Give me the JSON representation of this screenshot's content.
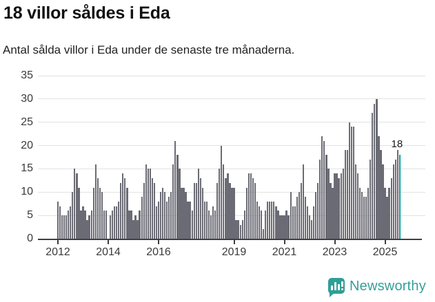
{
  "header": {
    "title": "18 villor såldes i Eda",
    "subtitle": "Antal sålda villor i Eda under de senaste tre månaderna."
  },
  "chart_data": {
    "type": "bar",
    "title": "18 villor såldes i Eda",
    "subtitle": "Antal sålda villor i Eda under de senaste tre månaderna.",
    "xlabel": "",
    "ylabel": "",
    "x_start": "2012-01",
    "x_end": "2025-08",
    "x_unit": "month",
    "ylim": [
      0,
      35
    ],
    "yticks": [
      0,
      5,
      10,
      15,
      20,
      25,
      30,
      35
    ],
    "grid": true,
    "legend": "none",
    "bar_color": "#6b6b75",
    "highlight_color": "#00a2a2",
    "highlight_last": true,
    "highlight_value_label": "18",
    "xticks": [
      {
        "label": "2012",
        "month_index": 0
      },
      {
        "label": "2014",
        "month_index": 24
      },
      {
        "label": "2016",
        "month_index": 48
      },
      {
        "label": "2019",
        "month_index": 84
      },
      {
        "label": "2021",
        "month_index": 108
      },
      {
        "label": "2023",
        "month_index": 132
      },
      {
        "label": "2025",
        "month_index": 156
      }
    ],
    "values": [
      8,
      7,
      5,
      5,
      5,
      6,
      7,
      10,
      15,
      14,
      11,
      6,
      7,
      6,
      4,
      5,
      6,
      11,
      16,
      13,
      11,
      10,
      6,
      6,
      0,
      5,
      6,
      7,
      7,
      8,
      12,
      14,
      13,
      11,
      6,
      6,
      4,
      5,
      4,
      6,
      9,
      12,
      16,
      15,
      15,
      13,
      12,
      7,
      8,
      10,
      11,
      10,
      8,
      9,
      10,
      16,
      21,
      18,
      15,
      11,
      11,
      10,
      8,
      8,
      6,
      12,
      12,
      15,
      13,
      11,
      8,
      8,
      6,
      5,
      7,
      6,
      12,
      15,
      20,
      16,
      13,
      14,
      12,
      11,
      11,
      4,
      4,
      3,
      4,
      6,
      11,
      14,
      14,
      13,
      12,
      8,
      7,
      6,
      2,
      6,
      8,
      8,
      8,
      8,
      7,
      6,
      5,
      5,
      5,
      6,
      5,
      10,
      7,
      7,
      9,
      10,
      12,
      16,
      9,
      7,
      5,
      4,
      7,
      10,
      12,
      17,
      22,
      21,
      18,
      15,
      12,
      11,
      14,
      14,
      13,
      14,
      15,
      19,
      19,
      25,
      24,
      24,
      16,
      14,
      11,
      10,
      9,
      9,
      11,
      17,
      27,
      29,
      30,
      22,
      19,
      16,
      11,
      9,
      11,
      13,
      16,
      17,
      19,
      18
    ]
  },
  "footer": {
    "brand": "Newsworthy",
    "brand_color": "#359f98",
    "logo_icon": "speech-bubble-bar-chart"
  }
}
